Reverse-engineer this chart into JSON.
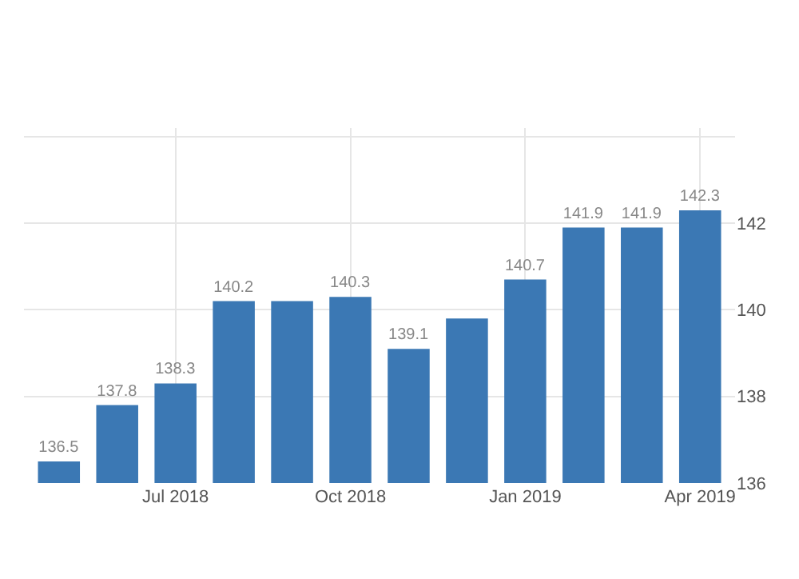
{
  "chart_data": {
    "type": "bar",
    "categories": [
      null,
      null,
      "Jul 2018",
      null,
      null,
      "Oct 2018",
      null,
      null,
      "Jan 2019",
      null,
      null,
      "Apr 2019"
    ],
    "values": [
      136.5,
      137.8,
      138.3,
      140.2,
      140.2,
      140.3,
      139.1,
      139.8,
      140.7,
      141.9,
      141.9,
      142.3
    ],
    "value_labels": [
      "136.5",
      "137.8",
      "138.3",
      "140.2",
      null,
      "140.3",
      "139.1",
      null,
      "140.7",
      "141.9",
      "141.9",
      "142.3"
    ],
    "color": "#3b78b4",
    "ylim": [
      136,
      144.2
    ],
    "yticks": [
      136,
      138,
      140,
      142,
      {
        "value": 144,
        "label": null
      }
    ],
    "grid": true,
    "legend": false
  }
}
